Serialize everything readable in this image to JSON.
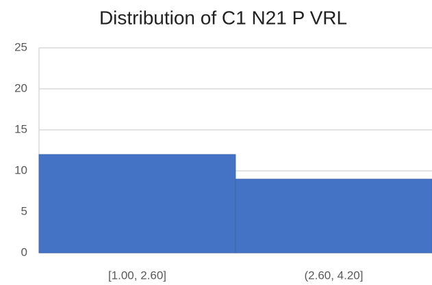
{
  "chart_data": {
    "type": "bar",
    "title": "Distribution of C1 N21 P VRL",
    "categories": [
      "[1.00, 2.60]",
      "(2.60, 4.20]"
    ],
    "values": [
      12,
      9
    ],
    "color": "#4472c4",
    "ylim": [
      0,
      25
    ],
    "yticks": [
      0,
      5,
      10,
      15,
      20,
      25
    ],
    "grid": true
  }
}
